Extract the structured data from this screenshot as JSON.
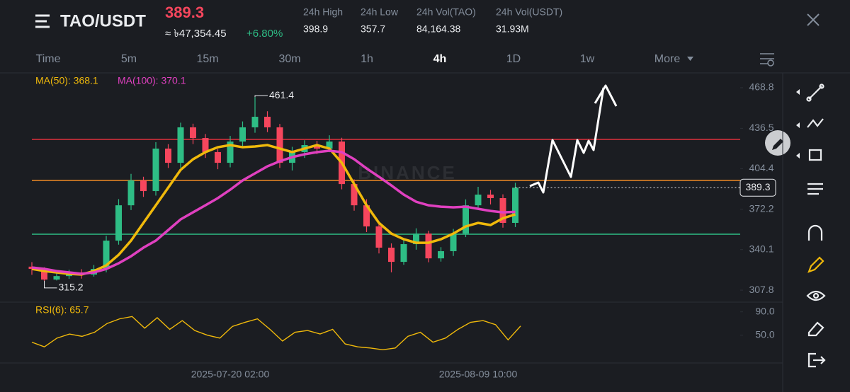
{
  "header": {
    "pair": "TAO/USDT",
    "price": "389.3",
    "conversion": "≈ ৳47,354.45",
    "change": "+6.80%",
    "stats": [
      {
        "label": "24h High",
        "value": "398.9"
      },
      {
        "label": "24h Low",
        "value": "357.7"
      },
      {
        "label": "24h Vol(TAO)",
        "value": "84,164.38"
      },
      {
        "label": "24h Vol(USDT)",
        "value": "31.93M"
      }
    ]
  },
  "timeframes": [
    "Time",
    "5m",
    "15m",
    "30m",
    "1h",
    "4h",
    "1D",
    "1w",
    "More"
  ],
  "active_timeframe": 5,
  "chart_data": {
    "type": "candlestick",
    "watermark": "BINANCE",
    "categories": [
      null,
      null,
      null,
      null,
      null,
      null,
      null,
      null,
      null,
      null,
      null,
      null,
      null,
      null,
      null,
      null,
      "2025-07-20 02:00",
      null,
      null,
      null,
      null,
      null,
      null,
      null,
      null,
      null,
      null,
      null,
      null,
      null,
      null,
      null,
      null,
      null,
      null,
      null,
      "2025-08-09 10:00",
      null,
      null,
      null
    ],
    "open": [
      326.5,
      324.7,
      316.2,
      319.0,
      321.8,
      320.2,
      324.7,
      347.2,
      375.3,
      395.1,
      386.6,
      420.4,
      409.1,
      437.3,
      428.8,
      417.6,
      409.1,
      426.0,
      437.3,
      445.7,
      437.3,
      409.1,
      417.6,
      423.2,
      420.4,
      426.0,
      392.2,
      375.3,
      358.5,
      341.6,
      330.3,
      344.4,
      352.8,
      333.1,
      338.8,
      352.8,
      375.3,
      383.8,
      381.0,
      361.3
    ],
    "high": [
      330.1,
      326.0,
      321.5,
      324.0,
      324.5,
      327.8,
      351.0,
      380.2,
      400.3,
      398.0,
      425.5,
      423.9,
      441.0,
      440.2,
      432.0,
      420.0,
      430.5,
      442.0,
      461.4,
      450.1,
      440.0,
      421.8,
      427.0,
      426.5,
      431.0,
      429.0,
      396.0,
      380.1,
      362.0,
      345.0,
      347.9,
      357.0,
      355.1,
      342.0,
      356.5,
      380.0,
      390.0,
      387.5,
      384.0,
      393.2
    ],
    "low": [
      320.0,
      315.2,
      315.5,
      316.8,
      317.0,
      318.6,
      322.0,
      344.0,
      371.5,
      382.0,
      383.0,
      405.0,
      405.2,
      424.0,
      413.0,
      404.0,
      405.5,
      421.0,
      433.0,
      433.5,
      405.0,
      403.0,
      413.0,
      416.0,
      417.5,
      388.0,
      371.0,
      354.0,
      337.0,
      322.0,
      328.0,
      340.0,
      330.0,
      330.5,
      335.0,
      350.0,
      372.0,
      376.0,
      357.5,
      358.0
    ],
    "close": [
      324.7,
      316.2,
      319.0,
      321.8,
      320.2,
      324.7,
      347.2,
      375.3,
      395.1,
      386.6,
      420.4,
      409.1,
      437.3,
      428.8,
      417.6,
      409.1,
      426.0,
      437.3,
      445.7,
      437.3,
      409.1,
      417.6,
      423.2,
      420.4,
      426.0,
      392.2,
      375.3,
      358.5,
      341.6,
      330.3,
      344.4,
      352.8,
      333.1,
      338.8,
      352.8,
      375.3,
      383.8,
      381.0,
      361.3,
      389.3
    ],
    "up_color": "#2ebd85",
    "down_color": "#f6465d",
    "series": [
      {
        "name": "MA(50): 368.1",
        "color": "#f0b90b",
        "values": [
          324.7,
          323.0,
          321.9,
          320.8,
          320.2,
          323.0,
          327.5,
          335.9,
          347.2,
          361.3,
          375.3,
          389.4,
          403.5,
          411.9,
          417.6,
          421.5,
          423.2,
          421.5,
          422.1,
          423.2,
          420.4,
          417.6,
          420.4,
          423.2,
          420.4,
          409.1,
          392.2,
          375.3,
          361.3,
          352.8,
          348.3,
          345.5,
          345.5,
          348.3,
          352.8,
          358.5,
          361.3,
          359.6,
          365.0,
          368.1
        ]
      },
      {
        "name": "MA(100): 370.1",
        "color": "#e040c0",
        "values": [
          325.8,
          324.7,
          323.0,
          321.9,
          320.8,
          321.9,
          324.7,
          329.2,
          334.8,
          341.6,
          347.2,
          355.6,
          364.1,
          369.7,
          375.3,
          381.0,
          387.7,
          395.1,
          400.7,
          406.3,
          410.3,
          413.6,
          415.9,
          417.6,
          418.7,
          417.6,
          412.0,
          404.6,
          398.0,
          391.1,
          383.8,
          378.1,
          375.3,
          374.2,
          373.7,
          374.2,
          372.5,
          370.8,
          369.7,
          370.1
        ]
      }
    ],
    "ylim": [
      299.4,
      482.3
    ],
    "yticks": [
      468.8,
      436.5,
      404.4,
      372.2,
      340.1,
      307.8
    ],
    "levels": [
      {
        "value": 427.7,
        "color": "#e0303c"
      },
      {
        "value": 395.1,
        "color": "#f08a24"
      },
      {
        "value": 352.3,
        "color": "#2ebd85"
      }
    ],
    "last_price": 389.3,
    "annotations": [
      {
        "index": 18,
        "value": 461.4
      },
      {
        "index": 1,
        "value": 315.2
      }
    ],
    "rsi": {
      "name": "RSI(6): 65.7",
      "color": "#f0b90b",
      "values": [
        38,
        30,
        45,
        52,
        48,
        55,
        70,
        78,
        82,
        62,
        80,
        60,
        75,
        58,
        50,
        45,
        65,
        72,
        78,
        60,
        40,
        55,
        58,
        52,
        60,
        35,
        30,
        28,
        25,
        28,
        48,
        55,
        38,
        45,
        60,
        72,
        75,
        68,
        42,
        65.7
      ],
      "ylim": [
        6,
        103
      ],
      "yticks": [
        {
          "value": 90,
          "label": "90.0"
        },
        {
          "value": 50,
          "label": "50.0"
        }
      ]
    }
  }
}
